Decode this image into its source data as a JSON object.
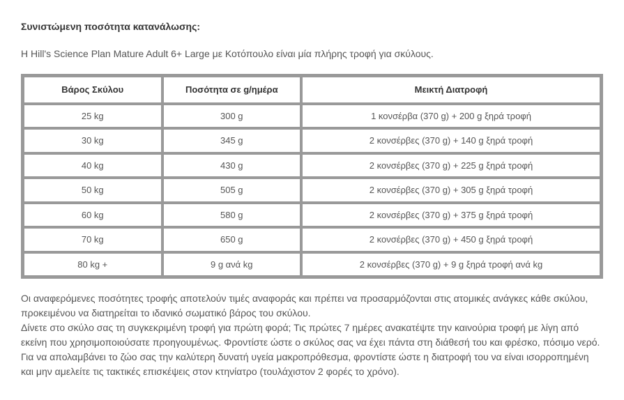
{
  "heading": "Συνιστώμενη ποσότητα κατανάλωσης:",
  "intro": "Η Hill's Science Plan Mature Adult 6+ Large με Κοτόπουλο είναι μία πλήρης τροφή για σκύλους.",
  "table": {
    "columns": [
      "Βάρος Σκύλου",
      "Ποσότητα σε g/ημέρα",
      "Μεικτή Διατροφή"
    ],
    "col_widths": [
      "24%",
      "24%",
      "52%"
    ],
    "header_fontweight": "bold",
    "header_color": "#333333",
    "cell_color": "#555555",
    "cell_fontsize": 13,
    "border_color": "#999999",
    "background_color": "#ffffff",
    "rows": [
      [
        "25 kg",
        "300 g",
        "1 κονσέρβα (370 g) + 200 g ξηρά τροφή"
      ],
      [
        "30 kg",
        "345 g",
        "2 κονσέρβες (370 g) + 140 g ξηρά τροφή"
      ],
      [
        "40 kg",
        "430 g",
        "2 κονσέρβες (370 g) + 225 g ξηρά τροφή"
      ],
      [
        "50 kg",
        "505 g",
        "2 κονσέρβες (370 g) + 305 g ξηρά τροφή"
      ],
      [
        "60 kg",
        "580 g",
        "2 κονσέρβες (370 g) + 375 g ξηρά τροφή"
      ],
      [
        "70 kg",
        "650 g",
        "2 κονσέρβες (370 g) + 450 g ξηρά τροφή"
      ],
      [
        "80 kg +",
        "9 g ανά kg",
        "2 κονσέρβες (370 g) + 9 g ξηρά τροφή ανά kg"
      ]
    ]
  },
  "footer_line1": "Οι αναφερόμενες ποσότητες τροφής αποτελούν τιμές αναφοράς και πρέπει να προσαρμόζονται στις ατομικές ανάγκες κάθε σκύλου, προκειμένου να διατηρείται το ιδανικό σωματικό βάρος του σκύλου.",
  "footer_line2": "Δίνετε στο σκύλο σας τη συγκεκριμένη τροφή για πρώτη φορά; Τις πρώτες 7 ημέρες ανακατέψτε την καινούρια τροφή με λίγη από εκείνη που χρησιμοποιούσατε προηγουμένως. Φροντίστε ώστε ο σκύλος σας να έχει πάντα στη διάθεσή του και φρέσκο, πόσιμο νερό. Για να απολαμβάνει το ζώο σας την καλύτερη δυνατή υγεία μακροπρόθεσμα, φροντίστε ώστε η διατροφή του να είναι ισορροπημένη και μην αμελείτε τις τακτικές επισκέψεις στον κτηνίατρο (τουλάχιστον 2 φορές το χρόνο)."
}
